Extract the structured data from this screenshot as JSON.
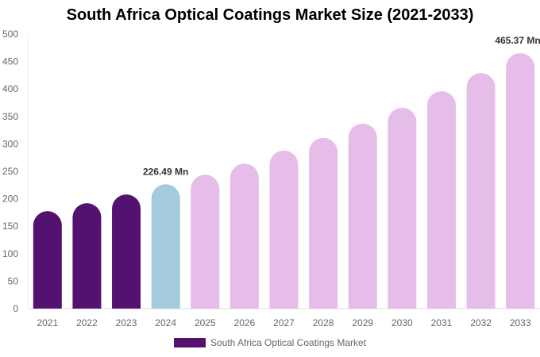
{
  "chart_data": {
    "type": "bar",
    "title": "South Africa Optical Coatings Market Size (2021-2033)",
    "categories": [
      "2021",
      "2022",
      "2023",
      "2024",
      "2025",
      "2026",
      "2027",
      "2028",
      "2029",
      "2030",
      "2031",
      "2032",
      "2033"
    ],
    "series": [
      {
        "name": "South Africa Optical Coatings Market",
        "values": [
          177.5,
          192,
          208,
          226.49,
          244,
          264,
          288,
          311,
          337,
          366,
          396,
          429,
          465.37
        ]
      }
    ],
    "bar_colors": {
      "historical": "#541270",
      "base_year": "#A3CADD",
      "forecast": "#E6BCE8"
    },
    "color_by_category": [
      "historical",
      "historical",
      "historical",
      "base_year",
      "forecast",
      "forecast",
      "forecast",
      "forecast",
      "forecast",
      "forecast",
      "forecast",
      "forecast",
      "forecast"
    ],
    "data_labels": [
      {
        "category": "2024",
        "text": "226.49 Mn"
      },
      {
        "category": "2033",
        "text": "465.37 Mn"
      }
    ],
    "ylim": [
      0,
      500
    ],
    "yticks": [
      0,
      50,
      100,
      150,
      200,
      250,
      300,
      350,
      400,
      450,
      500
    ],
    "grid": false,
    "legend_position": "bottom"
  }
}
